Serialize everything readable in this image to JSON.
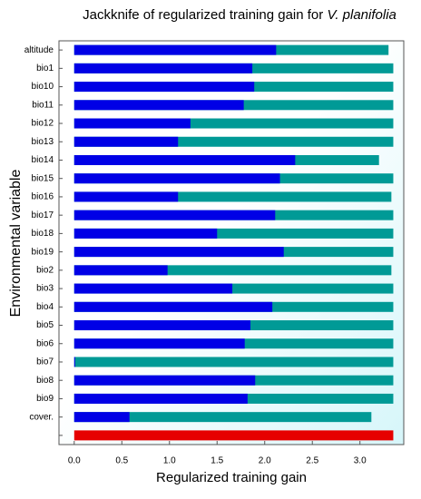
{
  "chart_data": {
    "type": "bar",
    "orientation": "horizontal",
    "title": [
      "Jackknife of regularized training gain for",
      "V. planifolia"
    ],
    "x_label": "Regularized training gain",
    "y_label": "Environmental variable",
    "categories": [
      "altitude",
      "bio1",
      "bio10",
      "bio11",
      "bio12",
      "bio13",
      "bio14",
      "bio15",
      "bio16",
      "bio17",
      "bio18",
      "bio19",
      "bio2",
      "bio3",
      "bio4",
      "bio5",
      "bio6",
      "bio7",
      "bio8",
      "bio9",
      "cover.",
      null
    ],
    "series": [
      {
        "color": "#009a96",
        "values": [
          3.3,
          3.35,
          3.35,
          3.35,
          3.35,
          3.35,
          3.2,
          3.35,
          3.33,
          3.35,
          3.35,
          3.35,
          3.33,
          3.35,
          3.35,
          3.35,
          3.35,
          3.35,
          3.35,
          3.35,
          3.12,
          null
        ]
      },
      {
        "color": "#0000e6",
        "values": [
          2.12,
          1.87,
          1.89,
          1.78,
          1.22,
          1.09,
          2.32,
          2.16,
          1.09,
          2.11,
          1.5,
          2.2,
          0.98,
          1.66,
          2.08,
          1.85,
          1.79,
          0.01,
          1.9,
          1.82,
          0.58,
          null
        ]
      },
      {
        "color": "#e60000",
        "values": [
          null,
          null,
          null,
          null,
          null,
          null,
          null,
          null,
          null,
          null,
          null,
          null,
          null,
          null,
          null,
          null,
          null,
          null,
          null,
          null,
          null,
          3.35
        ]
      }
    ],
    "xlim": [
      -0.16,
      3.46
    ],
    "xticks": [
      {
        "value": 0,
        "label": "0.0"
      },
      0.5,
      {
        "value": 1,
        "label": "1.0"
      },
      1.5,
      {
        "value": 2,
        "label": "2.0"
      },
      2.5,
      {
        "value": 3,
        "label": "3.0"
      }
    ]
  }
}
